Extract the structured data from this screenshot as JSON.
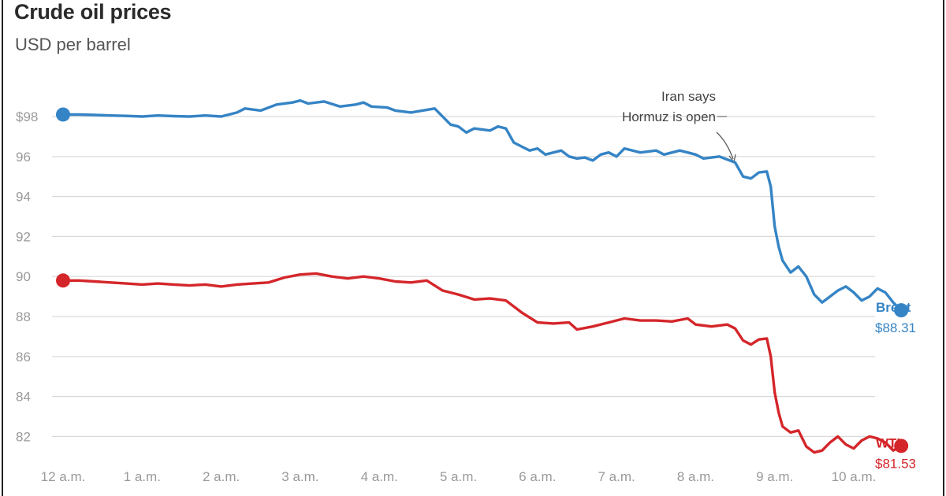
{
  "chart_data": {
    "type": "line",
    "title": "Crude oil prices",
    "subtitle": "USD per barrel",
    "x_ticks": [
      "12 a.m.",
      "1 a.m.",
      "2 a.m.",
      "3 a.m.",
      "4 a.m.",
      "5 a.m.",
      "6 a.m.",
      "7 a.m.",
      "8 a.m.",
      "9 a.m.",
      "10 a.m."
    ],
    "y_ticks": [
      "$98",
      "96",
      "94",
      "92",
      "90",
      "88",
      "86",
      "84",
      "82"
    ],
    "ylim": [
      81,
      100
    ],
    "grid": true,
    "annotation": {
      "line1": "Iran says",
      "line2": "Hormuz is open",
      "x_hours": 8.5,
      "y": 95.2
    },
    "series": [
      {
        "name": "Brent",
        "end_label": "$88.31",
        "color": "#3584c5",
        "points": [
          [
            0,
            98.1
          ],
          [
            0.2,
            98.1
          ],
          [
            0.4,
            98.08
          ],
          [
            0.6,
            98.05
          ],
          [
            0.8,
            98.03
          ],
          [
            1.0,
            98.0
          ],
          [
            1.2,
            98.05
          ],
          [
            1.4,
            98.02
          ],
          [
            1.6,
            98.0
          ],
          [
            1.8,
            98.05
          ],
          [
            2.0,
            98.0
          ],
          [
            2.2,
            98.2
          ],
          [
            2.3,
            98.4
          ],
          [
            2.5,
            98.3
          ],
          [
            2.7,
            98.6
          ],
          [
            2.9,
            98.7
          ],
          [
            3.0,
            98.8
          ],
          [
            3.1,
            98.65
          ],
          [
            3.3,
            98.75
          ],
          [
            3.5,
            98.5
          ],
          [
            3.7,
            98.6
          ],
          [
            3.8,
            98.7
          ],
          [
            3.9,
            98.5
          ],
          [
            4.1,
            98.45
          ],
          [
            4.2,
            98.3
          ],
          [
            4.4,
            98.2
          ],
          [
            4.7,
            98.4
          ],
          [
            4.9,
            97.6
          ],
          [
            5.0,
            97.5
          ],
          [
            5.1,
            97.2
          ],
          [
            5.2,
            97.4
          ],
          [
            5.4,
            97.3
          ],
          [
            5.5,
            97.5
          ],
          [
            5.6,
            97.4
          ],
          [
            5.7,
            96.7
          ],
          [
            5.8,
            96.5
          ],
          [
            5.9,
            96.3
          ],
          [
            6.0,
            96.4
          ],
          [
            6.1,
            96.1
          ],
          [
            6.3,
            96.3
          ],
          [
            6.4,
            96.0
          ],
          [
            6.5,
            95.9
          ],
          [
            6.6,
            95.95
          ],
          [
            6.7,
            95.8
          ],
          [
            6.8,
            96.1
          ],
          [
            6.9,
            96.2
          ],
          [
            7.0,
            96.0
          ],
          [
            7.1,
            96.4
          ],
          [
            7.3,
            96.2
          ],
          [
            7.5,
            96.3
          ],
          [
            7.6,
            96.1
          ],
          [
            7.8,
            96.3
          ],
          [
            7.9,
            96.2
          ],
          [
            8.0,
            96.1
          ],
          [
            8.1,
            95.9
          ],
          [
            8.3,
            96.0
          ],
          [
            8.5,
            95.7
          ],
          [
            8.6,
            95.0
          ],
          [
            8.7,
            94.9
          ],
          [
            8.8,
            95.2
          ],
          [
            8.9,
            95.25
          ],
          [
            8.95,
            94.5
          ],
          [
            9.0,
            92.5
          ],
          [
            9.05,
            91.5
          ],
          [
            9.1,
            90.8
          ],
          [
            9.2,
            90.2
          ],
          [
            9.3,
            90.5
          ],
          [
            9.4,
            90.0
          ],
          [
            9.5,
            89.1
          ],
          [
            9.6,
            88.7
          ],
          [
            9.7,
            89.0
          ],
          [
            9.8,
            89.3
          ],
          [
            9.9,
            89.5
          ],
          [
            10.0,
            89.2
          ],
          [
            10.1,
            88.8
          ],
          [
            10.2,
            89.0
          ],
          [
            10.3,
            89.4
          ],
          [
            10.4,
            89.2
          ],
          [
            10.5,
            88.7
          ],
          [
            10.6,
            88.31
          ]
        ]
      },
      {
        "name": "WTI",
        "end_label": "$81.53",
        "color": "#d4262a",
        "points": [
          [
            0,
            89.8
          ],
          [
            0.2,
            89.8
          ],
          [
            0.4,
            89.75
          ],
          [
            0.6,
            89.7
          ],
          [
            0.8,
            89.65
          ],
          [
            1.0,
            89.6
          ],
          [
            1.2,
            89.65
          ],
          [
            1.4,
            89.6
          ],
          [
            1.6,
            89.55
          ],
          [
            1.8,
            89.6
          ],
          [
            2.0,
            89.5
          ],
          [
            2.2,
            89.6
          ],
          [
            2.4,
            89.65
          ],
          [
            2.6,
            89.7
          ],
          [
            2.8,
            89.95
          ],
          [
            3.0,
            90.1
          ],
          [
            3.2,
            90.15
          ],
          [
            3.4,
            90.0
          ],
          [
            3.6,
            89.9
          ],
          [
            3.8,
            90.0
          ],
          [
            4.0,
            89.9
          ],
          [
            4.2,
            89.75
          ],
          [
            4.4,
            89.7
          ],
          [
            4.6,
            89.8
          ],
          [
            4.8,
            89.3
          ],
          [
            5.0,
            89.1
          ],
          [
            5.2,
            88.85
          ],
          [
            5.4,
            88.9
          ],
          [
            5.6,
            88.8
          ],
          [
            5.8,
            88.2
          ],
          [
            6.0,
            87.7
          ],
          [
            6.2,
            87.65
          ],
          [
            6.4,
            87.7
          ],
          [
            6.5,
            87.35
          ],
          [
            6.7,
            87.5
          ],
          [
            6.9,
            87.7
          ],
          [
            7.1,
            87.9
          ],
          [
            7.3,
            87.8
          ],
          [
            7.5,
            87.8
          ],
          [
            7.7,
            87.75
          ],
          [
            7.9,
            87.9
          ],
          [
            8.0,
            87.6
          ],
          [
            8.2,
            87.5
          ],
          [
            8.4,
            87.6
          ],
          [
            8.5,
            87.4
          ],
          [
            8.6,
            86.8
          ],
          [
            8.7,
            86.6
          ],
          [
            8.8,
            86.85
          ],
          [
            8.9,
            86.9
          ],
          [
            8.95,
            86.0
          ],
          [
            9.0,
            84.2
          ],
          [
            9.05,
            83.2
          ],
          [
            9.1,
            82.5
          ],
          [
            9.2,
            82.2
          ],
          [
            9.3,
            82.3
          ],
          [
            9.4,
            81.5
          ],
          [
            9.5,
            81.2
          ],
          [
            9.6,
            81.3
          ],
          [
            9.7,
            81.7
          ],
          [
            9.8,
            82.0
          ],
          [
            9.9,
            81.6
          ],
          [
            10.0,
            81.4
          ],
          [
            10.1,
            81.8
          ],
          [
            10.2,
            82.0
          ],
          [
            10.3,
            81.9
          ],
          [
            10.4,
            81.7
          ],
          [
            10.5,
            81.3
          ],
          [
            10.6,
            81.53
          ]
        ]
      }
    ]
  }
}
